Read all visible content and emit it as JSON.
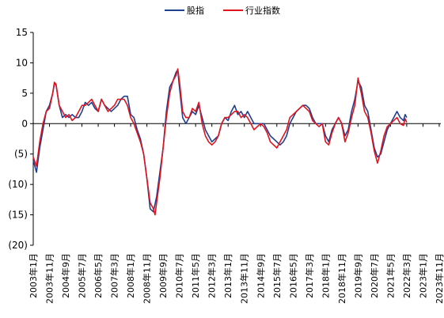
{
  "chart_data": {
    "type": "line",
    "title": "",
    "xlabel": "",
    "ylabel": "",
    "ylim": [
      -20,
      15
    ],
    "yticks": [
      15,
      10,
      5,
      0,
      -5,
      -10,
      -15,
      -20
    ],
    "ytick_labels": [
      "15",
      "10",
      "5",
      "0",
      "(5)",
      "(10)",
      "(15)",
      "(20)"
    ],
    "x_tick_labels": [
      "2003年1月",
      "2003年11月",
      "2004年9月",
      "2005年7月",
      "2006年5月",
      "2007年3月",
      "2008年1月",
      "2008年11月",
      "2009年9月",
      "2010年7月",
      "2011年5月",
      "2012年3月",
      "2013年1月",
      "2013年11月",
      "2014年9月",
      "2015年7月",
      "2016年5月",
      "2017年3月",
      "2018年1月",
      "2018年11月",
      "2019年9月",
      "2020年7月",
      "2021年5月",
      "2022年3月",
      "2023年1月",
      "2023年11月"
    ],
    "x_start": "2003年1月",
    "x_end": "2023年12月",
    "grid": false,
    "legend_position": "top",
    "series": [
      {
        "name": "股指",
        "color": "#1f3f8f",
        "points": [
          [
            0,
            -6
          ],
          [
            2,
            -8
          ],
          [
            4,
            -4
          ],
          [
            6,
            -1
          ],
          [
            8,
            2
          ],
          [
            10,
            3
          ],
          [
            12,
            5
          ],
          [
            13,
            6.5
          ],
          [
            14,
            6.5
          ],
          [
            16,
            3
          ],
          [
            18,
            1
          ],
          [
            20,
            1.5
          ],
          [
            22,
            1
          ],
          [
            24,
            1.5
          ],
          [
            26,
            1
          ],
          [
            28,
            1
          ],
          [
            30,
            2
          ],
          [
            32,
            3.5
          ],
          [
            34,
            3
          ],
          [
            36,
            3.5
          ],
          [
            38,
            2.5
          ],
          [
            40,
            2
          ],
          [
            42,
            4
          ],
          [
            44,
            3
          ],
          [
            46,
            2.5
          ],
          [
            48,
            2
          ],
          [
            50,
            2.5
          ],
          [
            52,
            3
          ],
          [
            54,
            4
          ],
          [
            56,
            4.5
          ],
          [
            58,
            4.5
          ],
          [
            60,
            1.5
          ],
          [
            62,
            1
          ],
          [
            64,
            -1
          ],
          [
            66,
            -2.5
          ],
          [
            68,
            -5
          ],
          [
            70,
            -9
          ],
          [
            72,
            -14
          ],
          [
            74,
            -14.5
          ],
          [
            76,
            -12
          ],
          [
            78,
            -8
          ],
          [
            80,
            -4
          ],
          [
            82,
            2
          ],
          [
            84,
            6
          ],
          [
            86,
            7
          ],
          [
            88,
            8.5
          ],
          [
            89,
            8.8
          ],
          [
            90,
            6
          ],
          [
            92,
            1
          ],
          [
            94,
            0
          ],
          [
            96,
            1
          ],
          [
            98,
            2
          ],
          [
            100,
            1.5
          ],
          [
            102,
            3
          ],
          [
            104,
            1
          ],
          [
            106,
            -1
          ],
          [
            108,
            -2
          ],
          [
            110,
            -3
          ],
          [
            112,
            -2.5
          ],
          [
            114,
            -2
          ],
          [
            116,
            0
          ],
          [
            118,
            1
          ],
          [
            120,
            0.5
          ],
          [
            122,
            2
          ],
          [
            124,
            3
          ],
          [
            126,
            1.5
          ],
          [
            128,
            2
          ],
          [
            130,
            1
          ],
          [
            132,
            2
          ],
          [
            134,
            1
          ],
          [
            136,
            0
          ],
          [
            138,
            0
          ],
          [
            140,
            0
          ],
          [
            142,
            0
          ],
          [
            144,
            -1
          ],
          [
            146,
            -2
          ],
          [
            148,
            -2.5
          ],
          [
            150,
            -3
          ],
          [
            152,
            -3.5
          ],
          [
            154,
            -3
          ],
          [
            156,
            -2
          ],
          [
            158,
            0
          ],
          [
            160,
            1
          ],
          [
            162,
            2
          ],
          [
            164,
            2.5
          ],
          [
            166,
            3
          ],
          [
            168,
            3
          ],
          [
            170,
            2.5
          ],
          [
            172,
            1
          ],
          [
            174,
            0
          ],
          [
            176,
            0
          ],
          [
            178,
            0
          ],
          [
            180,
            -2
          ],
          [
            182,
            -3
          ],
          [
            184,
            -1
          ],
          [
            186,
            0
          ],
          [
            188,
            1
          ],
          [
            190,
            0
          ],
          [
            192,
            -2
          ],
          [
            194,
            -1
          ],
          [
            196,
            2
          ],
          [
            198,
            4
          ],
          [
            200,
            7
          ],
          [
            202,
            6
          ],
          [
            204,
            3
          ],
          [
            206,
            2
          ],
          [
            208,
            -1
          ],
          [
            210,
            -4
          ],
          [
            212,
            -5.5
          ],
          [
            214,
            -5
          ],
          [
            216,
            -3
          ],
          [
            218,
            -1
          ],
          [
            220,
            0
          ],
          [
            222,
            1
          ],
          [
            224,
            2
          ],
          [
            226,
            1
          ],
          [
            228,
            0.5
          ],
          [
            229,
            1.5
          ],
          [
            230,
            1
          ]
        ]
      },
      {
        "name": "行业指数",
        "color": "#e0141e",
        "points": [
          [
            0,
            -5.5
          ],
          [
            2,
            -7
          ],
          [
            4,
            -3
          ],
          [
            6,
            0
          ],
          [
            8,
            2
          ],
          [
            10,
            2.5
          ],
          [
            12,
            5
          ],
          [
            13,
            6.8
          ],
          [
            14,
            6.5
          ],
          [
            16,
            3
          ],
          [
            18,
            2
          ],
          [
            20,
            1
          ],
          [
            22,
            1.5
          ],
          [
            24,
            0.5
          ],
          [
            26,
            1
          ],
          [
            28,
            2
          ],
          [
            30,
            3
          ],
          [
            32,
            3
          ],
          [
            34,
            3.5
          ],
          [
            36,
            4
          ],
          [
            38,
            3
          ],
          [
            40,
            2
          ],
          [
            42,
            4
          ],
          [
            44,
            3
          ],
          [
            46,
            2
          ],
          [
            48,
            2.5
          ],
          [
            50,
            3
          ],
          [
            52,
            4
          ],
          [
            54,
            4
          ],
          [
            56,
            4
          ],
          [
            58,
            3
          ],
          [
            60,
            1
          ],
          [
            62,
            0
          ],
          [
            64,
            -1.5
          ],
          [
            66,
            -3
          ],
          [
            68,
            -5
          ],
          [
            70,
            -9
          ],
          [
            72,
            -13
          ],
          [
            74,
            -14
          ],
          [
            75,
            -15
          ],
          [
            76,
            -13
          ],
          [
            78,
            -9
          ],
          [
            80,
            -4
          ],
          [
            82,
            1
          ],
          [
            84,
            5
          ],
          [
            86,
            7
          ],
          [
            88,
            8
          ],
          [
            89,
            9
          ],
          [
            90,
            7
          ],
          [
            92,
            2
          ],
          [
            94,
            1
          ],
          [
            96,
            1
          ],
          [
            98,
            2.5
          ],
          [
            100,
            2
          ],
          [
            102,
            3.5
          ],
          [
            104,
            0
          ],
          [
            106,
            -2
          ],
          [
            108,
            -3
          ],
          [
            110,
            -3.5
          ],
          [
            112,
            -3
          ],
          [
            114,
            -2
          ],
          [
            116,
            0
          ],
          [
            118,
            1
          ],
          [
            120,
            1
          ],
          [
            122,
            1.5
          ],
          [
            124,
            2
          ],
          [
            126,
            2
          ],
          [
            128,
            1
          ],
          [
            130,
            1.5
          ],
          [
            132,
            1
          ],
          [
            134,
            0
          ],
          [
            136,
            -1
          ],
          [
            138,
            -0.5
          ],
          [
            140,
            0
          ],
          [
            142,
            -0.5
          ],
          [
            144,
            -1.5
          ],
          [
            146,
            -3
          ],
          [
            148,
            -3.5
          ],
          [
            150,
            -4
          ],
          [
            152,
            -3
          ],
          [
            154,
            -2
          ],
          [
            156,
            -1
          ],
          [
            158,
            1
          ],
          [
            160,
            1.5
          ],
          [
            162,
            2
          ],
          [
            164,
            2.5
          ],
          [
            166,
            3
          ],
          [
            168,
            2.5
          ],
          [
            170,
            2
          ],
          [
            172,
            0.5
          ],
          [
            174,
            0
          ],
          [
            176,
            -0.5
          ],
          [
            178,
            0
          ],
          [
            180,
            -3
          ],
          [
            182,
            -3.5
          ],
          [
            184,
            -1.5
          ],
          [
            186,
            0
          ],
          [
            188,
            1
          ],
          [
            190,
            0
          ],
          [
            192,
            -3
          ],
          [
            194,
            -1.5
          ],
          [
            196,
            1
          ],
          [
            198,
            3
          ],
          [
            200,
            7.5
          ],
          [
            202,
            5
          ],
          [
            204,
            2
          ],
          [
            206,
            1
          ],
          [
            208,
            -1.5
          ],
          [
            210,
            -4.5
          ],
          [
            212,
            -6.5
          ],
          [
            214,
            -4.5
          ],
          [
            216,
            -2
          ],
          [
            218,
            -0.5
          ],
          [
            220,
            0
          ],
          [
            222,
            0.5
          ],
          [
            224,
            1
          ],
          [
            226,
            0
          ],
          [
            228,
            -0.3
          ],
          [
            229,
            0.8
          ],
          [
            230,
            0.2
          ]
        ]
      }
    ]
  }
}
